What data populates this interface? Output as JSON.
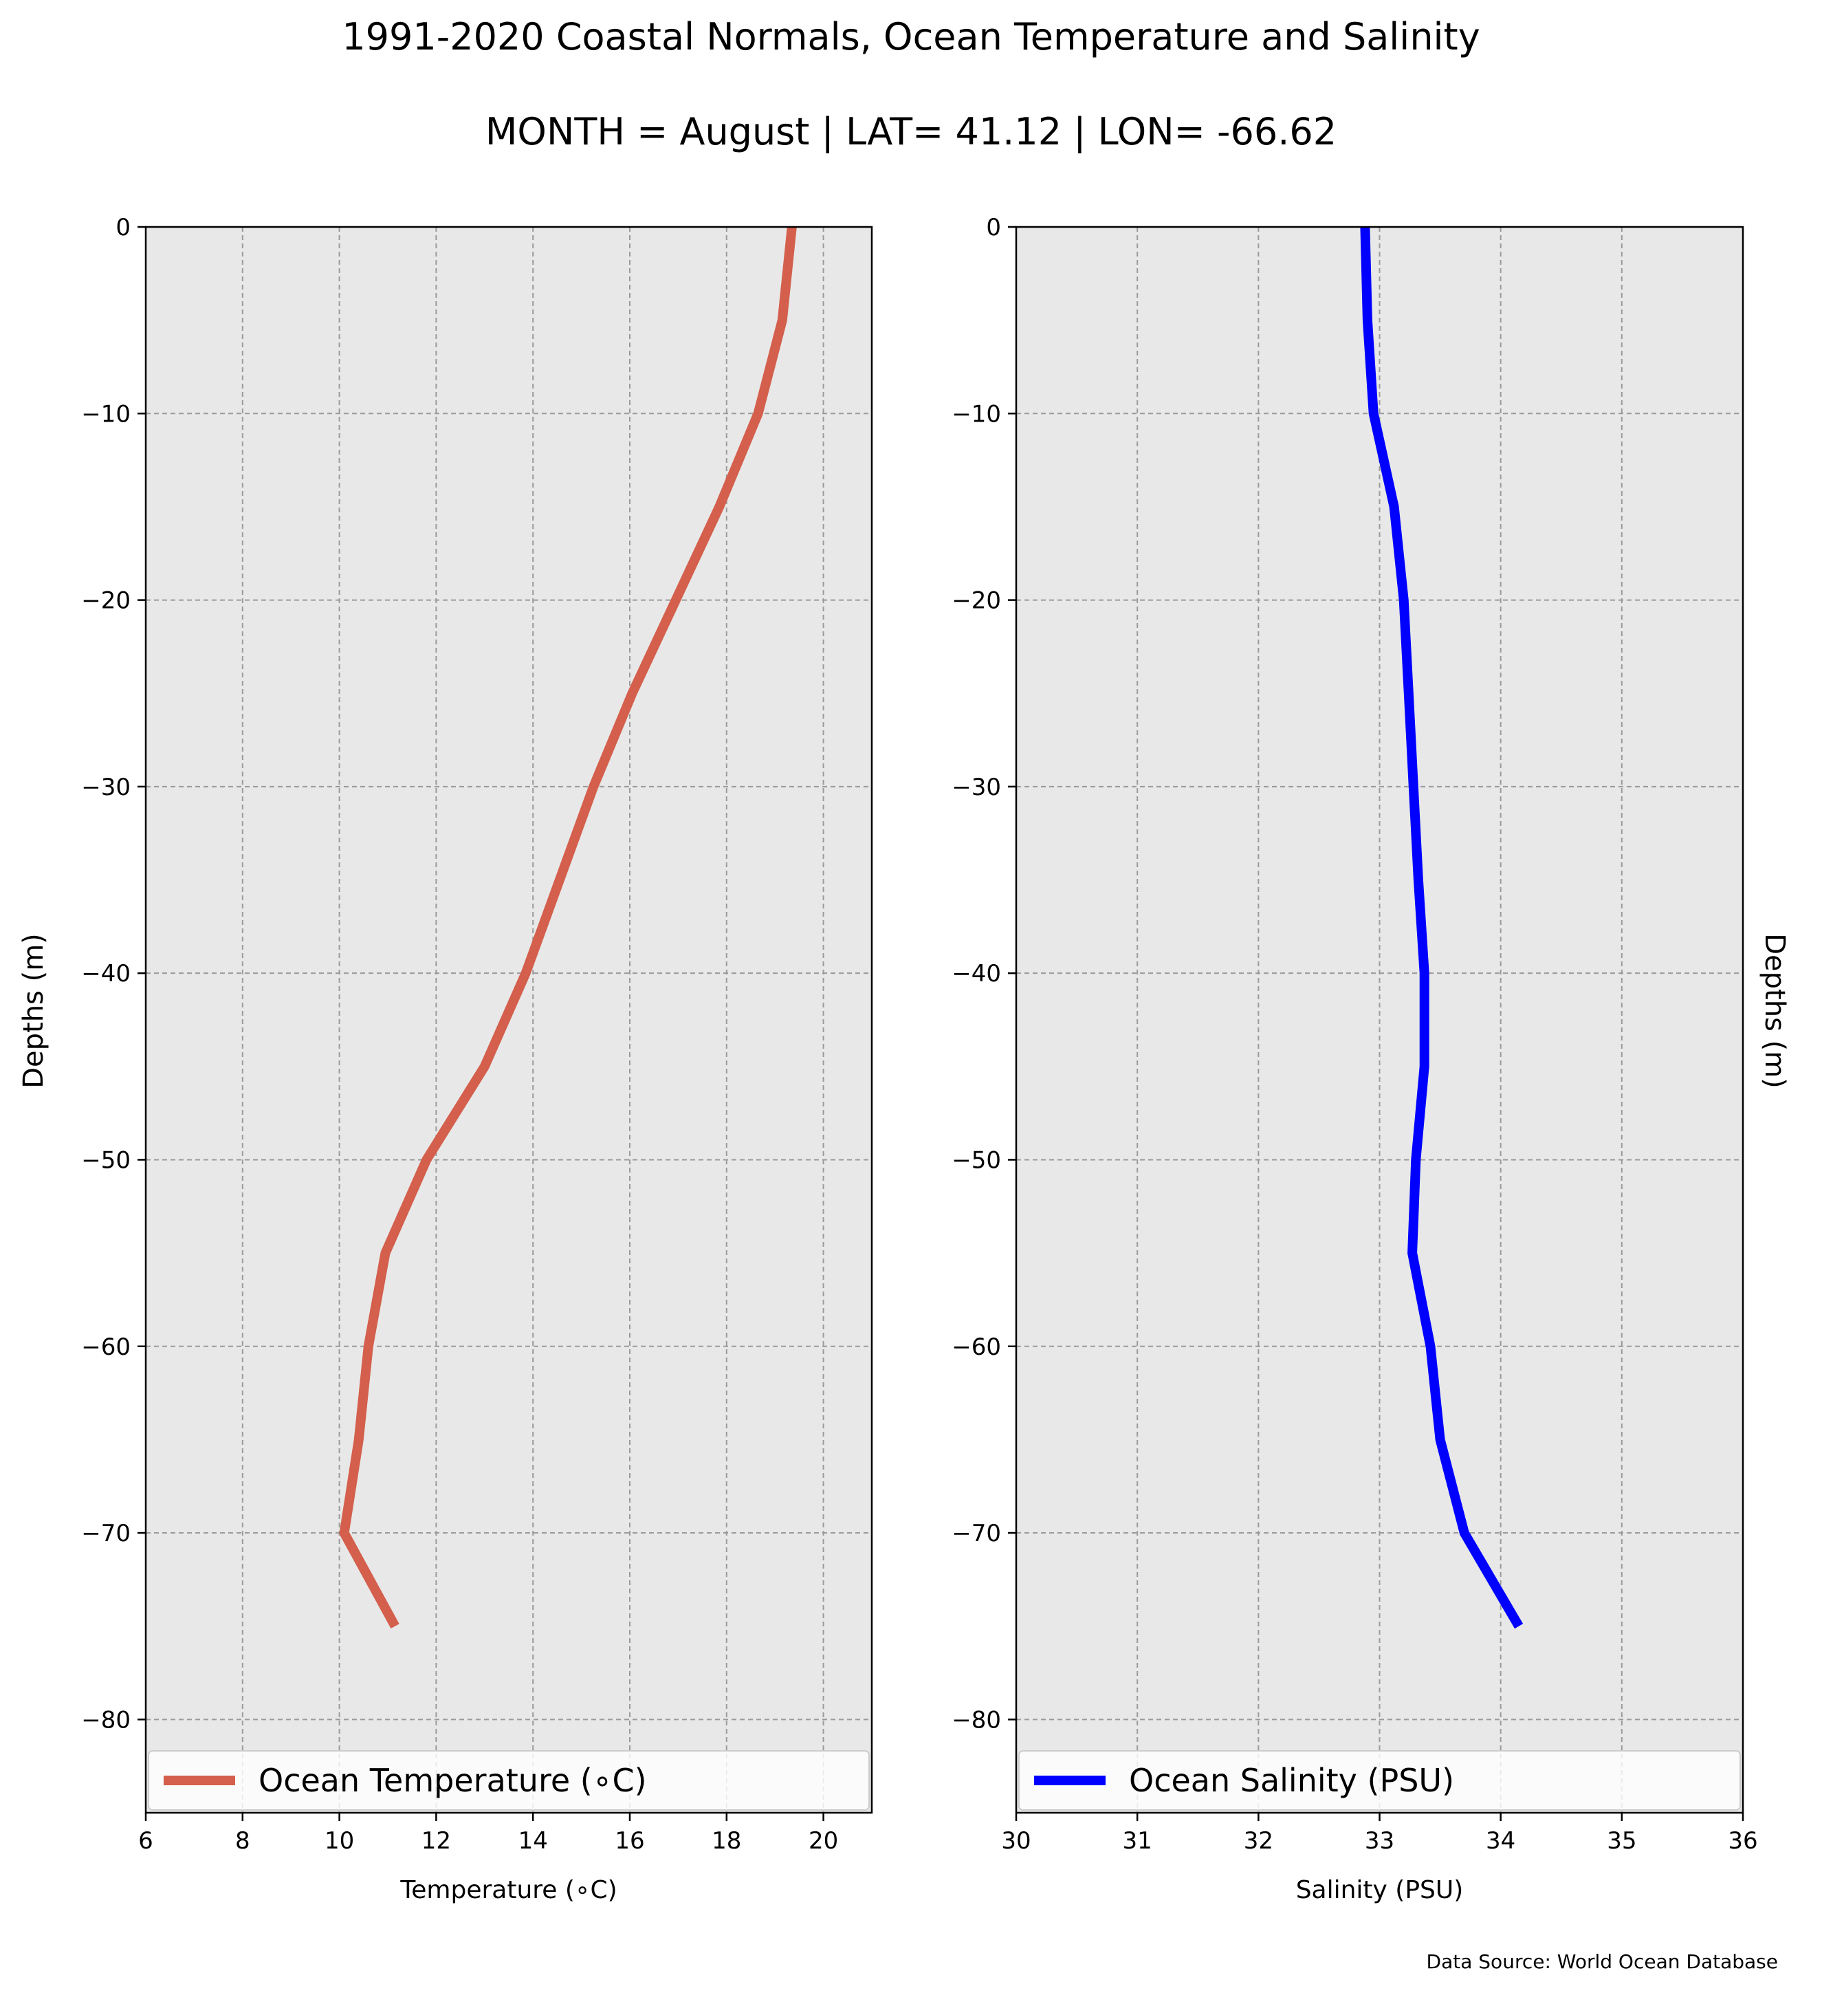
{
  "title": "1991-2020 Coastal Normals, Ocean Temperature and Salinity",
  "subtitle": "MONTH = August | LAT= 41.12 | LON= -66.62",
  "source": "Data Source: World Ocean Database",
  "chart_data": [
    {
      "type": "line",
      "xlabel": "Temperature (∘C)",
      "ylabel": "Depths (m)",
      "xlim": [
        6,
        21
      ],
      "ylim": [
        -85,
        0
      ],
      "xticks": [
        6,
        8,
        10,
        12,
        14,
        16,
        18,
        20
      ],
      "yticks": [
        0,
        -10,
        -20,
        -30,
        -40,
        -50,
        -60,
        -70,
        -80
      ],
      "grid": true,
      "legend": "lower-center",
      "series": [
        {
          "name": "Ocean Temperature (∘C)",
          "color": "#d35f4c",
          "x": [
            19.35,
            19.15,
            18.65,
            17.85,
            16.95,
            16.05,
            15.25,
            14.55,
            13.85,
            13.0,
            11.8,
            10.95,
            10.6,
            10.4,
            10.1,
            11.15
          ],
          "y": [
            0,
            -5,
            -10,
            -15,
            -20,
            -25,
            -30,
            -35,
            -40,
            -45,
            -50,
            -55,
            -60,
            -65,
            -70,
            -75
          ]
        }
      ]
    },
    {
      "type": "line",
      "xlabel": "Salinity (PSU)",
      "ylabel": "Depths (m)",
      "xlim": [
        30,
        36
      ],
      "ylim": [
        -85,
        0
      ],
      "xticks": [
        30,
        31,
        32,
        33,
        34,
        35,
        36
      ],
      "yticks": [
        0,
        -10,
        -20,
        -30,
        -40,
        -50,
        -60,
        -70,
        -80
      ],
      "grid": true,
      "legend": "lower-center",
      "series": [
        {
          "name": "Ocean Salinity (PSU)",
          "color": "#0000ff",
          "x": [
            32.88,
            32.9,
            32.95,
            33.12,
            33.2,
            33.24,
            33.28,
            33.32,
            33.37,
            33.37,
            33.3,
            33.27,
            33.42,
            33.5,
            33.7,
            34.15
          ],
          "y": [
            0,
            -5,
            -10,
            -15,
            -20,
            -25,
            -30,
            -35,
            -40,
            -45,
            -50,
            -55,
            -60,
            -65,
            -70,
            -75
          ]
        }
      ]
    }
  ]
}
